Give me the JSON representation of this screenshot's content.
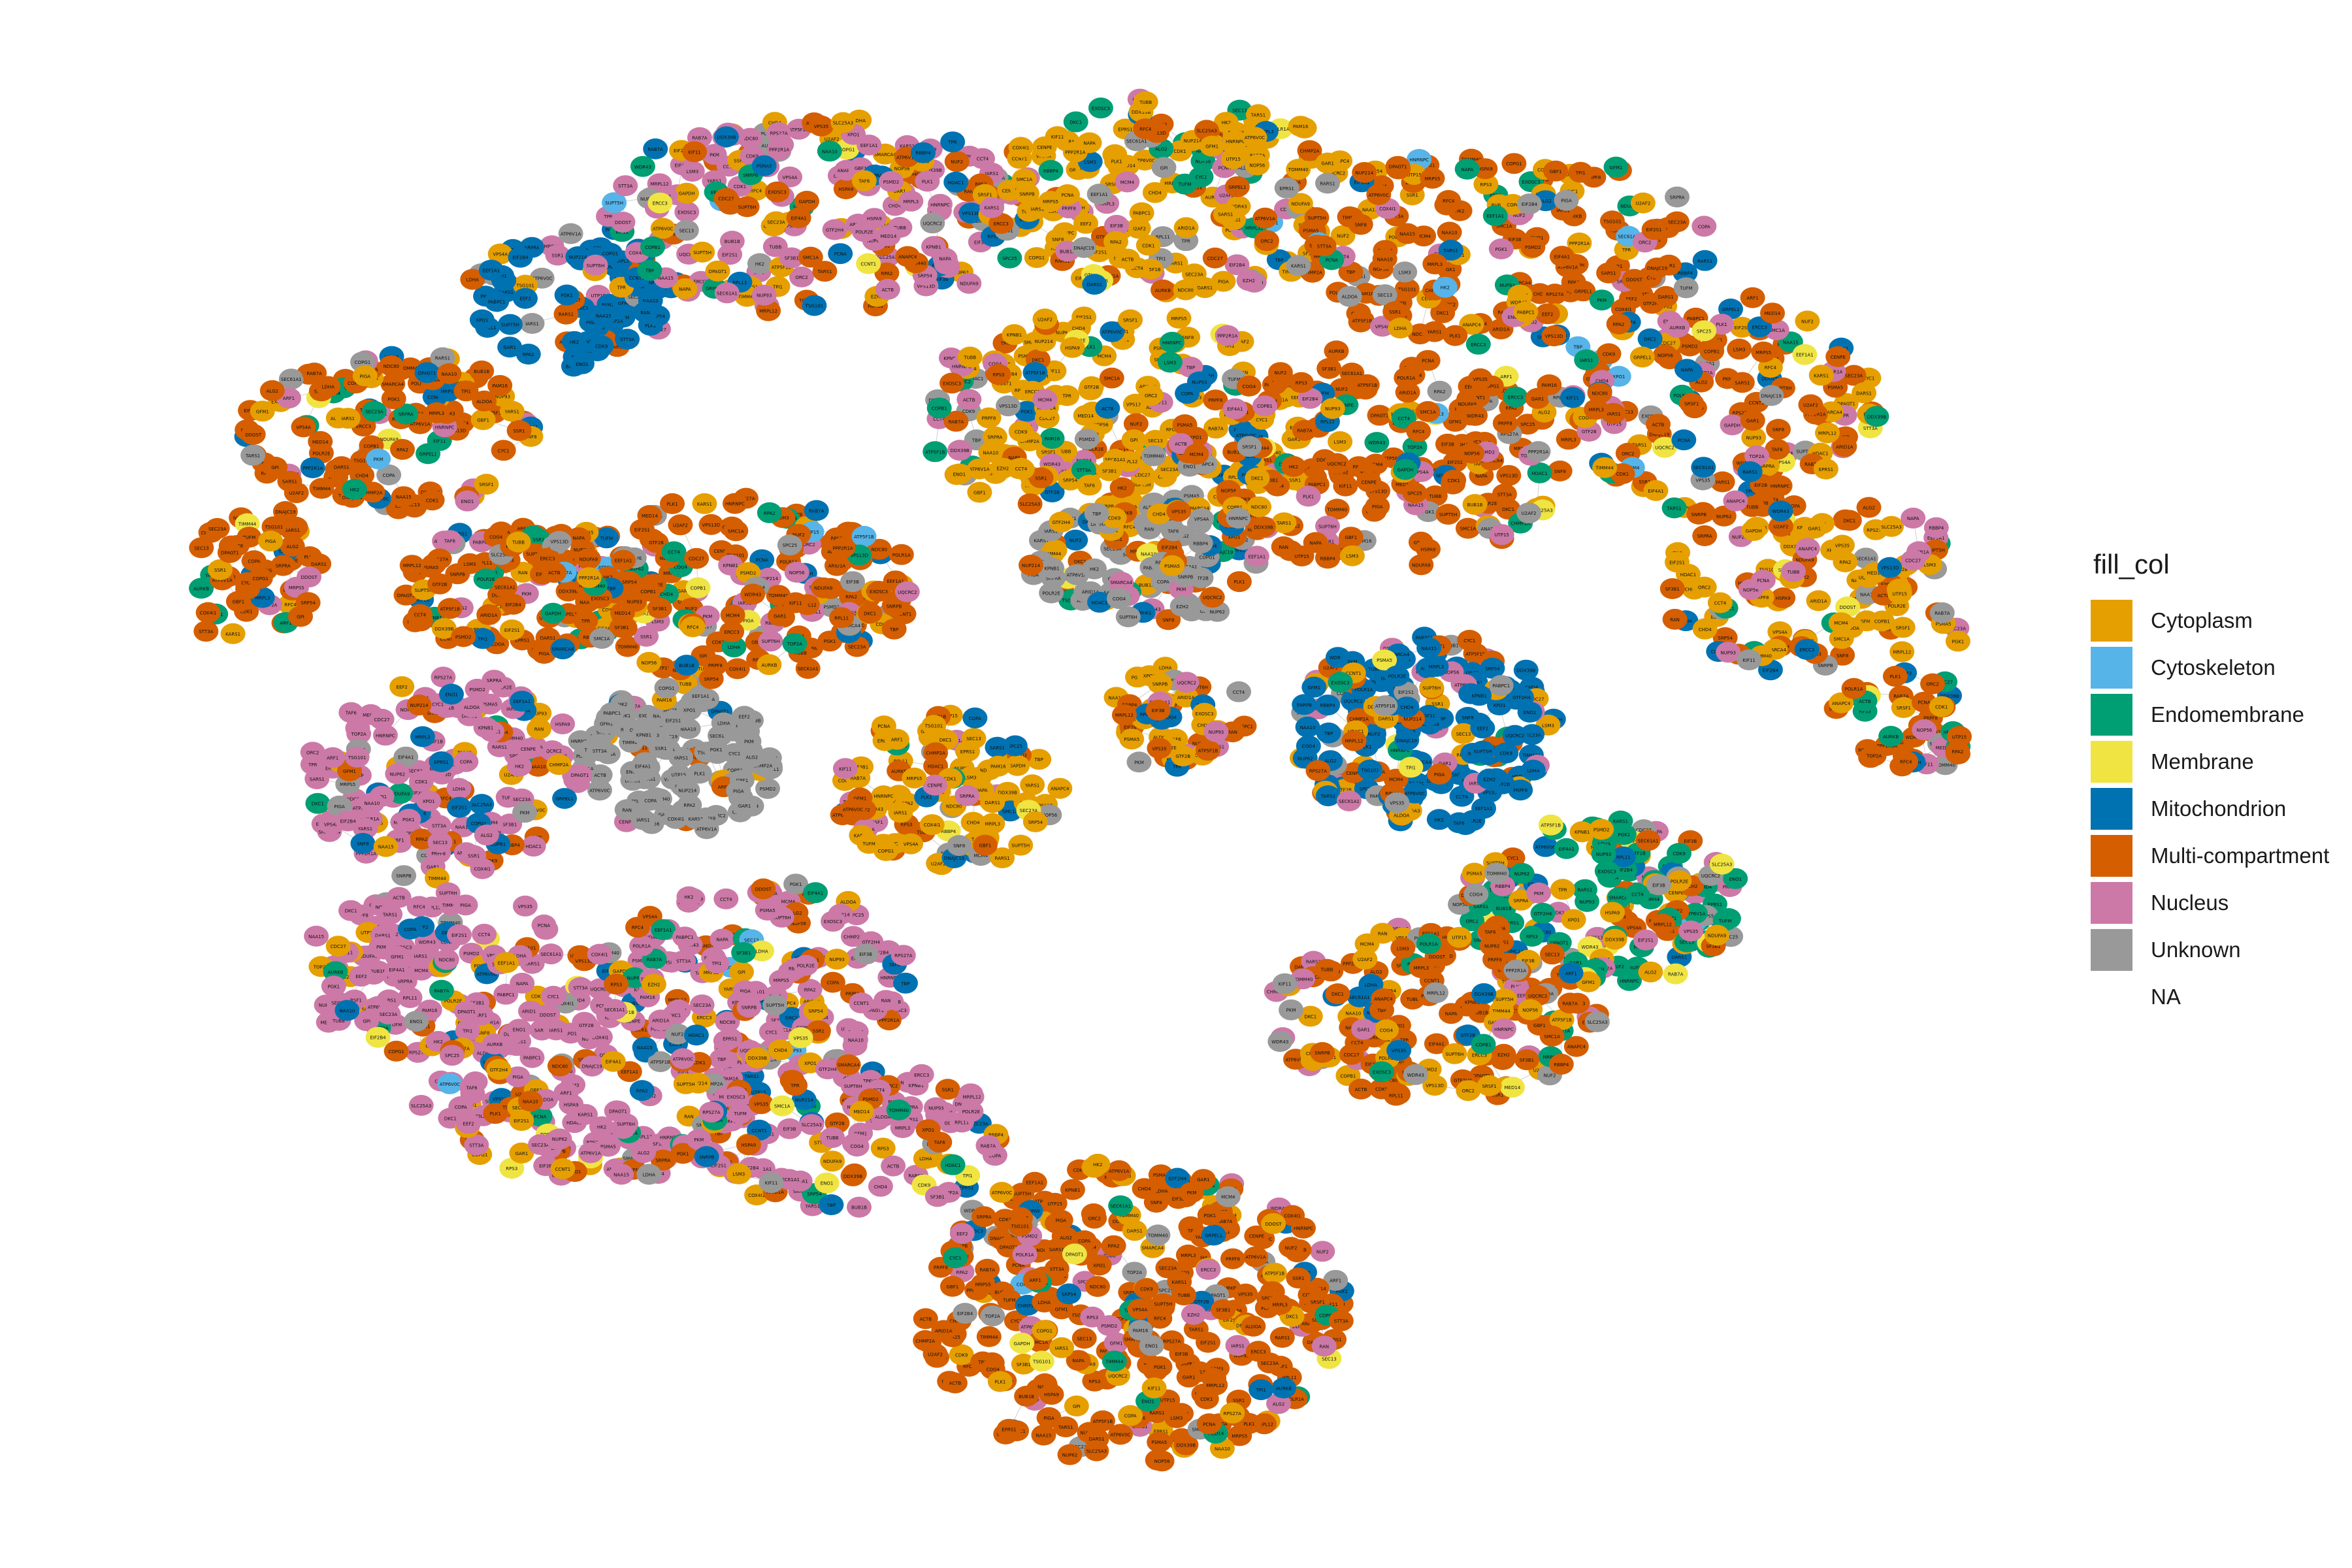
{
  "legend": {
    "title": "fill_col",
    "entries": [
      {
        "label": "Cytoplasm",
        "color": "#E69F00"
      },
      {
        "label": "Cytoskeleton",
        "color": "#56B4E9"
      },
      {
        "label": "Endomembrane",
        "color": "#009E73"
      },
      {
        "label": "Membrane",
        "color": "#F0E442"
      },
      {
        "label": "Mitochondrion",
        "color": "#0072B2"
      },
      {
        "label": "Multi-compartment",
        "color": "#D55E00"
      },
      {
        "label": "Nucleus",
        "color": "#CC79A7"
      },
      {
        "label": "Unknown",
        "color": "#999999"
      },
      {
        "label": "NA",
        "color": ""
      }
    ]
  },
  "network": {
    "node_label_samples": [
      "SNRPB",
      "RPL11",
      "RPS27A",
      "PSMA5",
      "POLR2E",
      "COG4",
      "VPS35",
      "UQCRC2",
      "ATP5F1B",
      "MRPL12",
      "SEC61A1",
      "EXOSC3",
      "NUP93",
      "CCT4",
      "EIF3B",
      "RPS3",
      "SF3B1",
      "DDX39B",
      "PSMD2",
      "NDUFA9",
      "SLC25A3",
      "TOMM40",
      "HSPA9",
      "RAB7A",
      "LSM3",
      "SMC1A",
      "ERCC3",
      "MED14",
      "KIF11",
      "TUBB",
      "ACTB",
      "GAPDH",
      "COPB1",
      "NAPA",
      "VPS13D",
      "PPP2R1A",
      "CDC27",
      "ANAPC4",
      "ORC2",
      "MCM4",
      "PRPF8",
      "U2AF2",
      "SRSF1",
      "HNRNPC",
      "POLR1A",
      "UTP15",
      "WDR43",
      "NOP56",
      "DKC1",
      "GAR1",
      "RPA2",
      "PCNA",
      "RFC4",
      "TOP2A",
      "CDK1",
      "PLK1",
      "AURKB",
      "BUB1B",
      "NUF2",
      "SPC25",
      "NDC80",
      "CENPE",
      "EPRS1",
      "KARS1",
      "DARS1",
      "TARS1",
      "YARS1",
      "IARS1",
      "RARS1",
      "SARS1",
      "GRPEL1",
      "TIMM44",
      "PAM16",
      "DNAJC19",
      "MRPS5",
      "MRPL3",
      "GFM1",
      "TUFM",
      "COX4I1",
      "CYC1",
      "ATP6V1A",
      "ATP6V0C",
      "VPS4A",
      "CHMP2A",
      "SNF8",
      "TSG101",
      "SEC13",
      "SEC23A",
      "ARF1",
      "GBF1",
      "COPA",
      "COPG1",
      "SRP54",
      "SRPRA",
      "SSR1",
      "DDOST",
      "STT3A",
      "ALG2",
      "DPAGT1",
      "GPI",
      "PIGA",
      "PGK1",
      "ENO1",
      "PKM",
      "ALDOA",
      "TPI1",
      "LDHA",
      "HK2",
      "NAA10",
      "NAA15",
      "EEF2",
      "EEF1A1",
      "EIF4A1",
      "EIF2S1",
      "EIF2B4",
      "PABPC1",
      "XPO1",
      "KPNB1",
      "RAN",
      "NUP214",
      "NUP62",
      "TPR",
      "SUPT5H",
      "SUPT6H",
      "CDK9",
      "CCNT1",
      "TAF6",
      "TBP",
      "GTF2B",
      "GTF2H4",
      "SMARCA4",
      "ARID1A",
      "CHD4",
      "HDAC1",
      "RBBP4",
      "EZH2"
    ]
  }
}
